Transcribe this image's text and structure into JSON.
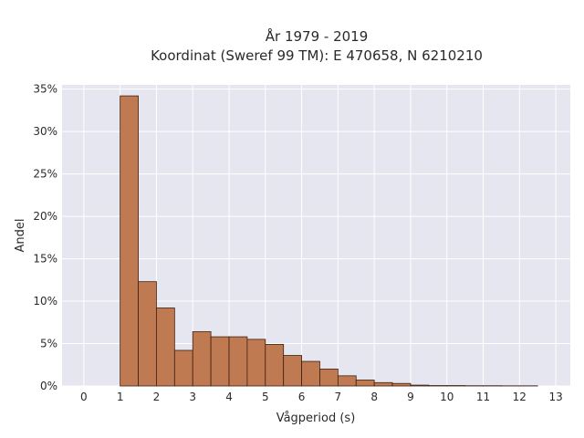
{
  "chart_data": {
    "type": "bar",
    "title_line1": "År 1979 - 2019",
    "title_line2": "Koordinat (Sweref 99 TM): E 470658, N 6210210",
    "xlabel": "Vågperiod (s)",
    "ylabel": "Andel",
    "xlim": [
      -0.6,
      13.4
    ],
    "ylim": [
      0,
      0.355
    ],
    "x_ticks": [
      0,
      1,
      2,
      3,
      4,
      5,
      6,
      7,
      8,
      9,
      10,
      11,
      12,
      13
    ],
    "x_tick_labels": [
      "0",
      "1",
      "2",
      "3",
      "4",
      "5",
      "6",
      "7",
      "8",
      "9",
      "10",
      "11",
      "12",
      "13"
    ],
    "y_ticks": [
      0,
      0.05,
      0.1,
      0.15,
      0.2,
      0.25,
      0.3,
      0.35
    ],
    "y_tick_labels": [
      "0%",
      "5%",
      "10%",
      "15%",
      "20%",
      "25%",
      "30%",
      "35%"
    ],
    "grid": true,
    "bin_width": 0.5,
    "bins": [
      {
        "x0": 0.0,
        "value": 0.0
      },
      {
        "x0": 1.0,
        "value": 0.342
      },
      {
        "x0": 1.5,
        "value": 0.123
      },
      {
        "x0": 2.0,
        "value": 0.092
      },
      {
        "x0": 2.5,
        "value": 0.042
      },
      {
        "x0": 3.0,
        "value": 0.064
      },
      {
        "x0": 3.5,
        "value": 0.058
      },
      {
        "x0": 4.0,
        "value": 0.058
      },
      {
        "x0": 4.5,
        "value": 0.055
      },
      {
        "x0": 5.0,
        "value": 0.049
      },
      {
        "x0": 5.5,
        "value": 0.036
      },
      {
        "x0": 6.0,
        "value": 0.029
      },
      {
        "x0": 6.5,
        "value": 0.02
      },
      {
        "x0": 7.0,
        "value": 0.012
      },
      {
        "x0": 7.5,
        "value": 0.007
      },
      {
        "x0": 8.0,
        "value": 0.004
      },
      {
        "x0": 8.5,
        "value": 0.003
      },
      {
        "x0": 9.0,
        "value": 0.001
      },
      {
        "x0": 9.5,
        "value": 0.0005
      },
      {
        "x0": 10.0,
        "value": 0.0005
      },
      {
        "x0": 10.5,
        "value": 0.0003
      },
      {
        "x0": 11.0,
        "value": 0.0003
      },
      {
        "x0": 11.5,
        "value": 0.0002
      },
      {
        "x0": 12.0,
        "value": 0.0002
      }
    ],
    "colors": {
      "bar_fill": "#c07a52",
      "bar_stroke": "#3d2010",
      "plot_background": "#e5e6ef",
      "grid": "#ffffff"
    }
  }
}
